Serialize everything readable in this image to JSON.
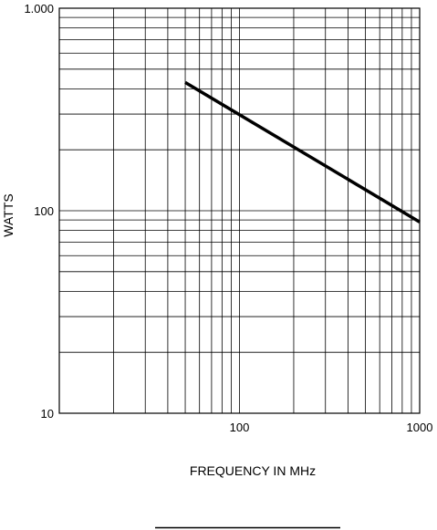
{
  "chart_data": {
    "type": "line",
    "title": "",
    "xlabel": "FREQUENCY IN MHz",
    "ylabel": "WATTS",
    "xscale": "log",
    "yscale": "log",
    "xlim": [
      10,
      1000
    ],
    "ylim": [
      10,
      1000
    ],
    "grid": true,
    "x_tick_labels": [
      {
        "value": 100,
        "label": "100"
      },
      {
        "value": 1000,
        "label": "1000"
      }
    ],
    "y_tick_labels": [
      {
        "value": 10,
        "label": "10"
      },
      {
        "value": 100,
        "label": "100"
      },
      {
        "value": 1000,
        "label": "1.000"
      }
    ],
    "series": [
      {
        "x": [
          50,
          1000
        ],
        "y": [
          430,
          88
        ]
      }
    ],
    "colors": {
      "line": "#000000",
      "grid": "#000000",
      "background": "#ffffff"
    }
  }
}
